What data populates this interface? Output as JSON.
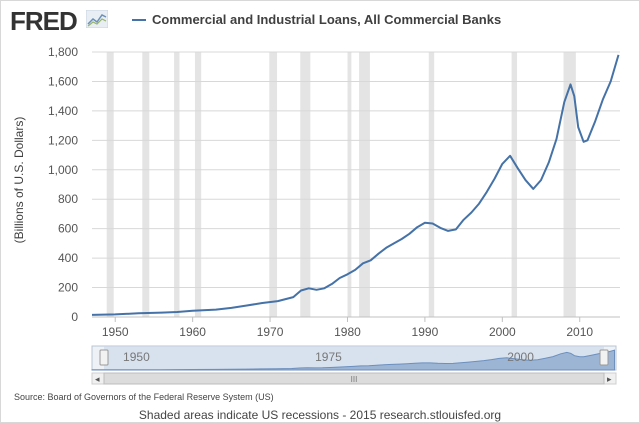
{
  "logo": {
    "text": "FRED",
    "icon": "fred-graph-icon"
  },
  "chart_data": {
    "type": "line",
    "title": "Commercial and Industrial Loans, All Commercial Banks",
    "ylabel": "(Billions of U.S. Dollars)",
    "xlabel": "",
    "xlim": [
      1947,
      2015.2
    ],
    "ylim": [
      0,
      1800
    ],
    "yticks": [
      0,
      200,
      400,
      600,
      800,
      1000,
      1200,
      1400,
      1600,
      1800
    ],
    "ytick_labels": [
      "0",
      "200",
      "400",
      "600",
      "800",
      "1,000",
      "1,200",
      "1,400",
      "1,600",
      "1,800"
    ],
    "xticks": [
      1950,
      1960,
      1970,
      1980,
      1990,
      2000,
      2010
    ],
    "xtick_labels": [
      "1950",
      "1960",
      "1970",
      "1980",
      "1990",
      "2000",
      "2010"
    ],
    "grid": "horizontal",
    "legend": "top",
    "series": [
      {
        "name": "Commercial and Industrial Loans, All Commercial Banks",
        "color": "#4572a7",
        "points": [
          [
            1947,
            14
          ],
          [
            1950,
            18
          ],
          [
            1953,
            25
          ],
          [
            1956,
            30
          ],
          [
            1958,
            34
          ],
          [
            1960,
            42
          ],
          [
            1963,
            50
          ],
          [
            1965,
            62
          ],
          [
            1967,
            78
          ],
          [
            1969,
            95
          ],
          [
            1971,
            108
          ],
          [
            1973,
            135
          ],
          [
            1974,
            180
          ],
          [
            1975,
            195
          ],
          [
            1976,
            185
          ],
          [
            1977,
            195
          ],
          [
            1978,
            225
          ],
          [
            1979,
            265
          ],
          [
            1980,
            290
          ],
          [
            1981,
            320
          ],
          [
            1982,
            365
          ],
          [
            1983,
            385
          ],
          [
            1984,
            430
          ],
          [
            1985,
            470
          ],
          [
            1986,
            500
          ],
          [
            1987,
            530
          ],
          [
            1988,
            565
          ],
          [
            1989,
            610
          ],
          [
            1990,
            640
          ],
          [
            1991,
            635
          ],
          [
            1992,
            605
          ],
          [
            1993,
            585
          ],
          [
            1994,
            595
          ],
          [
            1995,
            660
          ],
          [
            1996,
            710
          ],
          [
            1997,
            770
          ],
          [
            1998,
            850
          ],
          [
            1999,
            940
          ],
          [
            2000,
            1040
          ],
          [
            2001,
            1095
          ],
          [
            2002,
            1010
          ],
          [
            2003,
            930
          ],
          [
            2004,
            870
          ],
          [
            2005,
            930
          ],
          [
            2006,
            1050
          ],
          [
            2007,
            1210
          ],
          [
            2008,
            1460
          ],
          [
            2008.8,
            1580
          ],
          [
            2009.3,
            1500
          ],
          [
            2009.8,
            1290
          ],
          [
            2010.5,
            1190
          ],
          [
            2011,
            1200
          ],
          [
            2012,
            1330
          ],
          [
            2013,
            1480
          ],
          [
            2014,
            1600
          ],
          [
            2015,
            1780
          ]
        ]
      }
    ],
    "recessions": [
      [
        1948.9,
        1949.8
      ],
      [
        1953.5,
        1954.4
      ],
      [
        1957.6,
        1958.3
      ],
      [
        1960.3,
        1961.1
      ],
      [
        1969.9,
        1970.9
      ],
      [
        1973.9,
        1975.2
      ],
      [
        1980.0,
        1980.5
      ],
      [
        1981.5,
        1982.9
      ],
      [
        1990.5,
        1991.2
      ],
      [
        2001.2,
        2001.9
      ],
      [
        2007.9,
        2009.5
      ]
    ]
  },
  "navigator": {
    "labels": [
      "1950",
      "1975",
      "2000"
    ]
  },
  "source": "Source: Board of Governors of the Federal Reserve System (US)",
  "footer": "Shaded areas indicate US recessions - 2015 research.stlouisfed.org"
}
